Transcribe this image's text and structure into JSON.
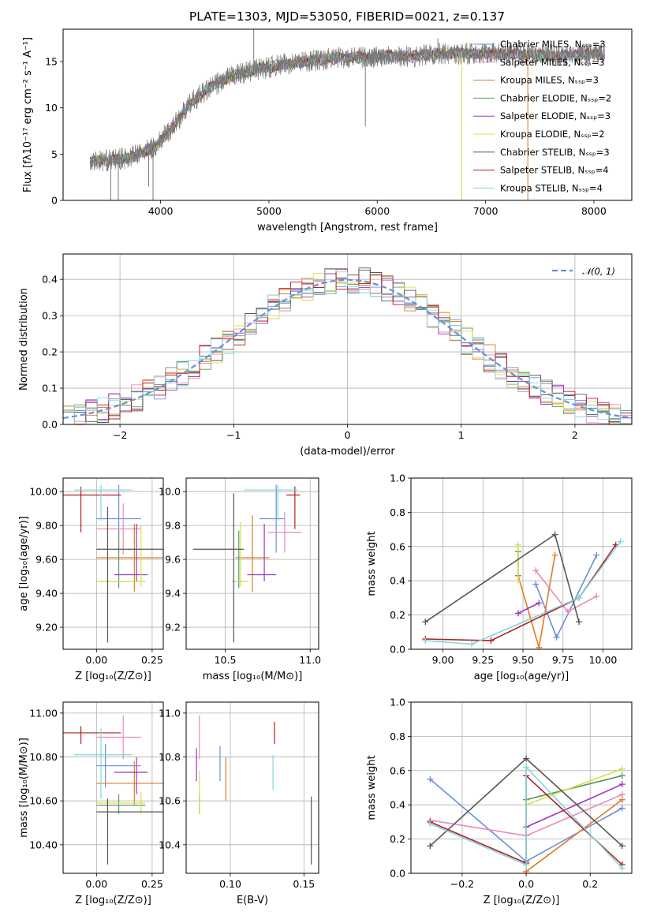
{
  "figure_title": "PLATE=1303, MJD=53050, FIBERID=0021, z=0.137",
  "colors": {
    "Chabrier MILES": "#6a8fd8",
    "Salpeter MILES": "#e88bbb",
    "Kroupa MILES": "#e07b25",
    "Chabrier ELODIE": "#5b9a5b",
    "Salpeter ELODIE": "#9b35c2",
    "Kroupa ELODIE": "#d6e04a",
    "Chabrier STELIB": "#555555",
    "Salpeter STELIB": "#b21f1f",
    "Kroupa STELIB": "#80d6dc"
  },
  "chart_data": [
    {
      "id": "spectrum",
      "type": "line",
      "title": "PLATE=1303, MJD=53050, FIBERID=0021, z=0.137",
      "xlabel": "wavelength [Angstrom, rest frame]",
      "ylabel": "Flux [fλ10⁻¹⁷ erg cm⁻² s⁻¹ A⁻¹]",
      "xlim": [
        3100,
        8350
      ],
      "ylim": [
        0,
        18.5
      ],
      "xticks": [
        4000,
        5000,
        6000,
        7000,
        8000
      ],
      "yticks": [
        0,
        5,
        10,
        15
      ],
      "grid": false,
      "legend_position": "top-right",
      "legend": [
        "Chabrier MILES, Nₛₛₚ=3",
        "Salpeter MILES, Nₛₛₚ=3",
        "Kroupa MILES, Nₛₛₚ=3",
        "Chabrier ELODIE, Nₛₛₚ=2",
        "Salpeter ELODIE, Nₛₛₚ=3",
        "Kroupa ELODIE, Nₛₛₚ=2",
        "Chabrier STELIB, Nₛₛₚ=3",
        "Salpeter STELIB, Nₛₛₚ=4",
        "Kroupa STELIB, Nₛₛₚ=4"
      ],
      "continuum": {
        "x": [
          3350,
          3500,
          3650,
          3800,
          3950,
          4100,
          4300,
          4500,
          4700,
          4900,
          5100,
          5300,
          5500,
          5700,
          5900,
          6100,
          6300,
          6500,
          6800,
          7100,
          7400,
          7700,
          8000,
          8100
        ],
        "y": [
          4.3,
          4.3,
          4.5,
          5.0,
          5.8,
          7.8,
          10.8,
          12.5,
          13.6,
          14.2,
          14.6,
          15.0,
          15.2,
          15.5,
          15.4,
          15.7,
          15.5,
          15.8,
          15.9,
          15.9,
          15.8,
          15.6,
          15.9,
          15.7
        ]
      },
      "data_spikes": [
        {
          "x": 3540,
          "y": 0
        },
        {
          "x": 3610,
          "y": 0
        },
        {
          "x": 3930,
          "y": 0
        },
        {
          "x": 3890,
          "y": 1.5
        },
        {
          "x": 4860,
          "y": 18.5
        },
        {
          "x": 5890,
          "y": 8.0
        },
        {
          "x": 6560,
          "y": 17.5
        },
        {
          "x": 7390,
          "y": 0
        }
      ],
      "model_drop": {
        "x": 6780,
        "y": 0
      }
    },
    {
      "id": "residuals",
      "type": "histogram",
      "xlabel": "(data-model)/error",
      "ylabel": "Normed distribution",
      "xlim": [
        -2.5,
        2.5
      ],
      "ylim": [
        0,
        0.47
      ],
      "xticks": [
        -2,
        -1,
        0,
        1,
        2
      ],
      "yticks": [
        0.0,
        0.1,
        0.2,
        0.3,
        0.4
      ],
      "grid": true,
      "legend_position": "top-right",
      "legend": [
        "𝒩(0, 1)"
      ],
      "bin_width": 0.1,
      "bin_range": [
        -2.5,
        2.5
      ]
    },
    {
      "id": "age-vs-Z",
      "type": "errorbar",
      "xlabel": "Z [log₁₀(Z/Z⊙)]",
      "ylabel": "age  [log₁₀(age/yr)]",
      "xlim": [
        -0.15,
        0.3
      ],
      "ylim": [
        9.07,
        10.08
      ],
      "xticks": [
        0.0,
        0.25
      ],
      "yticks": [
        9.2,
        9.4,
        9.6,
        9.8,
        10.0
      ],
      "grid": true,
      "points": [
        {
          "model": "Chabrier MILES",
          "x": 0.1,
          "xerr": [
            0.1,
            0.1
          ],
          "y": 9.84,
          "yerr": [
            0.2,
            0.2
          ]
        },
        {
          "model": "Salpeter MILES",
          "x": 0.12,
          "xerr": [
            0.12,
            0.08
          ],
          "y": 9.78,
          "yerr": [
            0.15,
            0.15
          ]
        },
        {
          "model": "Kroupa MILES",
          "x": 0.17,
          "xerr": [
            0.17,
            0.13
          ],
          "y": 9.61,
          "yerr": [
            0.2,
            0.2
          ]
        },
        {
          "model": "Chabrier ELODIE",
          "x": 0.1,
          "xerr": [
            0.1,
            0.12
          ],
          "y": 9.47,
          "yerr": [
            0.04,
            0.3
          ]
        },
        {
          "model": "Salpeter ELODIE",
          "x": 0.18,
          "xerr": [
            0.1,
            0.05
          ],
          "y": 9.51,
          "yerr": [
            0.04,
            0.3
          ]
        },
        {
          "model": "Kroupa ELODIE",
          "x": 0.2,
          "xerr": [
            0.2,
            0.02
          ],
          "y": 9.47,
          "yerr": [
            0.03,
            0.33
          ]
        },
        {
          "model": "Chabrier STELIB",
          "x": 0.05,
          "xerr": [
            0.05,
            0.25
          ],
          "y": 9.66,
          "yerr": [
            0.55,
            0.25
          ]
        },
        {
          "model": "Salpeter STELIB",
          "x": -0.07,
          "xerr": [
            0.08,
            0.18
          ],
          "y": 9.98,
          "yerr": [
            0.22,
            0.05
          ]
        },
        {
          "model": "Kroupa STELIB",
          "x": 0.02,
          "xerr": [
            0.12,
            0.14
          ],
          "y": 10.01,
          "yerr": [
            0.18,
            0.03
          ]
        }
      ]
    },
    {
      "id": "age-vs-mass",
      "type": "errorbar",
      "xlabel": "mass [log₁₀(M/M⊙)]",
      "ylabel": "",
      "xlim": [
        10.27,
        11.05
      ],
      "ylim": [
        9.07,
        10.08
      ],
      "xticks": [
        10.5,
        11.0
      ],
      "yticks": [
        9.2,
        9.4,
        9.6,
        9.8,
        10.0
      ],
      "grid": true,
      "points": [
        {
          "model": "Chabrier MILES",
          "x": 10.8,
          "xerr": [
            0.1,
            0.05
          ],
          "y": 9.84,
          "yerr": [
            0.2,
            0.2
          ]
        },
        {
          "model": "Salpeter MILES",
          "x": 10.85,
          "xerr": [
            0.1,
            0.1
          ],
          "y": 9.76,
          "yerr": [
            0.12,
            0.12
          ]
        },
        {
          "model": "Kroupa MILES",
          "x": 10.66,
          "xerr": [
            0.1,
            0.1
          ],
          "y": 9.61,
          "yerr": [
            0.2,
            0.25
          ]
        },
        {
          "model": "Chabrier ELODIE",
          "x": 10.58,
          "xerr": [
            0.04,
            0.05
          ],
          "y": 9.47,
          "yerr": [
            0.04,
            0.3
          ]
        },
        {
          "model": "Salpeter ELODIE",
          "x": 10.73,
          "xerr": [
            0.1,
            0.07
          ],
          "y": 9.51,
          "yerr": [
            0.04,
            0.3
          ]
        },
        {
          "model": "Kroupa ELODIE",
          "x": 10.59,
          "xerr": [
            0.05,
            0.05
          ],
          "y": 9.47,
          "yerr": [
            0.03,
            0.35
          ]
        },
        {
          "model": "Chabrier STELIB",
          "x": 10.55,
          "xerr": [
            0.24,
            0.06
          ],
          "y": 9.66,
          "yerr": [
            0.55,
            0.33
          ]
        },
        {
          "model": "Salpeter STELIB",
          "x": 10.91,
          "xerr": [
            0.05,
            0.03
          ],
          "y": 9.98,
          "yerr": [
            0.2,
            0.05
          ]
        },
        {
          "model": "Kroupa STELIB",
          "x": 10.81,
          "xerr": [
            0.2,
            0.12
          ],
          "y": 10.01,
          "yerr": [
            0.18,
            0.03
          ]
        }
      ]
    },
    {
      "id": "mass-weight-vs-age",
      "type": "line",
      "xlabel": "age  [log₁₀(age/yr)]",
      "ylabel": "mass weight",
      "xlim": [
        8.8,
        10.18
      ],
      "ylim": [
        0.0,
        1.0
      ],
      "xticks": [
        9.0,
        9.25,
        9.5,
        9.75,
        10.0
      ],
      "yticks": [
        0.0,
        0.2,
        0.4,
        0.6,
        0.8,
        1.0
      ],
      "grid": true,
      "series": [
        {
          "model": "Chabrier MILES",
          "x": [
            9.58,
            9.71,
            9.96
          ],
          "y": [
            0.38,
            0.07,
            0.55
          ]
        },
        {
          "model": "Salpeter MILES",
          "x": [
            9.58,
            9.78,
            9.96
          ],
          "y": [
            0.46,
            0.22,
            0.31
          ]
        },
        {
          "model": "Kroupa MILES",
          "x": [
            9.47,
            9.6,
            9.7
          ],
          "y": [
            0.43,
            0.01,
            0.55
          ]
        },
        {
          "model": "Chabrier ELODIE",
          "x": [
            9.47,
            9.47
          ],
          "y": [
            0.43,
            0.57
          ]
        },
        {
          "model": "Salpeter ELODIE",
          "x": [
            9.47,
            9.6
          ],
          "y": [
            0.21,
            0.27
          ]
        },
        {
          "model": "Kroupa ELODIE",
          "x": [
            9.47,
            9.47
          ],
          "y": [
            0.4,
            0.61
          ]
        },
        {
          "model": "Chabrier STELIB",
          "x": [
            8.89,
            9.7,
            9.85
          ],
          "y": [
            0.16,
            0.67,
            0.16
          ]
        },
        {
          "model": "Salpeter STELIB",
          "x": [
            8.89,
            9.3,
            9.85,
            10.08
          ],
          "y": [
            0.06,
            0.05,
            0.3,
            0.61
          ]
        },
        {
          "model": "Kroupa STELIB",
          "x": [
            8.89,
            9.18,
            9.85,
            10.11
          ],
          "y": [
            0.05,
            0.03,
            0.3,
            0.63
          ]
        }
      ]
    },
    {
      "id": "mass-vs-Z",
      "type": "errorbar",
      "xlabel": "Z [log₁₀(Z/Z⊙)]",
      "ylabel": "mass [log₁₀(M/M⊙)]",
      "xlim": [
        -0.15,
        0.3
      ],
      "ylim": [
        10.27,
        11.05
      ],
      "xticks": [
        0.0,
        0.25
      ],
      "yticks": [
        10.4,
        10.6,
        10.8,
        11.0
      ],
      "grid": true,
      "points": [
        {
          "model": "Chabrier MILES",
          "x": 0.04,
          "xerr": [
            0.04,
            0.16
          ],
          "y": 10.76,
          "yerr": [
            0.1,
            0.1
          ]
        },
        {
          "model": "Salpeter MILES",
          "x": 0.12,
          "xerr": [
            0.12,
            0.08
          ],
          "y": 10.89,
          "yerr": [
            0.1,
            0.1
          ]
        },
        {
          "model": "Kroupa MILES",
          "x": 0.17,
          "xerr": [
            0.17,
            0.13
          ],
          "y": 10.68,
          "yerr": [
            0.1,
            0.1
          ]
        },
        {
          "model": "Chabrier ELODIE",
          "x": 0.1,
          "xerr": [
            0.1,
            0.12
          ],
          "y": 10.58,
          "yerr": [
            0.04,
            0.05
          ]
        },
        {
          "model": "Salpeter ELODIE",
          "x": 0.18,
          "xerr": [
            0.1,
            0.05
          ],
          "y": 10.73,
          "yerr": [
            0.1,
            0.07
          ]
        },
        {
          "model": "Kroupa ELODIE",
          "x": 0.2,
          "xerr": [
            0.2,
            0.02
          ],
          "y": 10.59,
          "yerr": [
            0.05,
            0.05
          ]
        },
        {
          "model": "Chabrier STELIB",
          "x": 0.05,
          "xerr": [
            0.05,
            0.25
          ],
          "y": 10.55,
          "yerr": [
            0.24,
            0.06
          ]
        },
        {
          "model": "Salpeter STELIB",
          "x": -0.07,
          "xerr": [
            0.08,
            0.18
          ],
          "y": 10.91,
          "yerr": [
            0.05,
            0.03
          ]
        },
        {
          "model": "Kroupa STELIB",
          "x": 0.02,
          "xerr": [
            0.12,
            0.14
          ],
          "y": 10.81,
          "yerr": [
            0.2,
            0.12
          ]
        }
      ]
    },
    {
      "id": "mass-vs-EBV",
      "type": "errorbar",
      "xlabel": "E(B-V)",
      "ylabel": "",
      "xlim": [
        0.07,
        0.16
      ],
      "ylim": [
        10.27,
        11.05
      ],
      "xticks": [
        0.1,
        0.15
      ],
      "yticks": [
        10.4,
        10.6,
        10.8,
        11.0
      ],
      "grid": true,
      "points": [
        {
          "model": "Chabrier MILES",
          "x": 0.093,
          "yerr": [
            0.08,
            0.08
          ],
          "y": 10.77
        },
        {
          "model": "Salpeter MILES",
          "x": 0.079,
          "yerr": [
            0.1,
            0.1
          ],
          "y": 10.89
        },
        {
          "model": "Kroupa MILES",
          "x": 0.097,
          "yerr": [
            0.08,
            0.12
          ],
          "y": 10.68
        },
        {
          "model": "Chabrier ELODIE",
          "x": 0.079,
          "yerr": [
            0.04,
            0.05
          ],
          "y": 10.58
        },
        {
          "model": "Salpeter ELODIE",
          "x": 0.077,
          "yerr": [
            0.08,
            0.07
          ],
          "y": 10.77
        },
        {
          "model": "Kroupa ELODIE",
          "x": 0.079,
          "yerr": [
            0.05,
            0.15
          ],
          "y": 10.59
        },
        {
          "model": "Chabrier STELIB",
          "x": 0.155,
          "yerr": [
            0.24,
            0.07
          ],
          "y": 10.55
        },
        {
          "model": "Salpeter STELIB",
          "x": 0.13,
          "yerr": [
            0.05,
            0.05
          ],
          "y": 10.91
        },
        {
          "model": "Kroupa STELIB",
          "x": 0.129,
          "yerr": [
            0.1,
            0.06
          ],
          "y": 10.75
        }
      ]
    },
    {
      "id": "mass-weight-vs-Z",
      "type": "line",
      "xlabel": "Z [log₁₀(Z/Z⊙)]",
      "ylabel": "mass weight",
      "xlim": [
        -0.36,
        0.33
      ],
      "ylim": [
        0.0,
        1.0
      ],
      "xticks": [
        -0.2,
        0.0,
        0.2
      ],
      "yticks": [
        0.0,
        0.2,
        0.4,
        0.6,
        0.8,
        1.0
      ],
      "grid": true,
      "series": [
        {
          "model": "Chabrier MILES",
          "x": [
            -0.3,
            0.0,
            0.3
          ],
          "y": [
            0.55,
            0.07,
            0.38
          ]
        },
        {
          "model": "Salpeter MILES",
          "x": [
            -0.3,
            0.0,
            0.3
          ],
          "y": [
            0.31,
            0.22,
            0.46
          ]
        },
        {
          "model": "Kroupa MILES",
          "x": [
            0.0,
            0.3
          ],
          "y": [
            0.01,
            0.43
          ]
        },
        {
          "model": "Chabrier ELODIE",
          "x": [
            0.0,
            0.3
          ],
          "y": [
            0.43,
            0.57
          ]
        },
        {
          "model": "Salpeter ELODIE",
          "x": [
            0.0,
            0.3
          ],
          "y": [
            0.27,
            0.52
          ]
        },
        {
          "model": "Kroupa ELODIE",
          "x": [
            0.0,
            0.3
          ],
          "y": [
            0.4,
            0.61
          ]
        },
        {
          "model": "Chabrier STELIB",
          "x": [
            -0.3,
            0.0,
            0.3
          ],
          "y": [
            0.16,
            0.67,
            0.16
          ]
        },
        {
          "model": "Salpeter STELIB",
          "x": [
            -0.3,
            0.0,
            0.0,
            0.3
          ],
          "y": [
            0.3,
            0.06,
            0.57,
            0.05
          ]
        },
        {
          "model": "Kroupa STELIB",
          "x": [
            -0.3,
            0.0,
            0.0,
            0.3
          ],
          "y": [
            0.29,
            0.05,
            0.62,
            0.03
          ]
        }
      ]
    }
  ]
}
